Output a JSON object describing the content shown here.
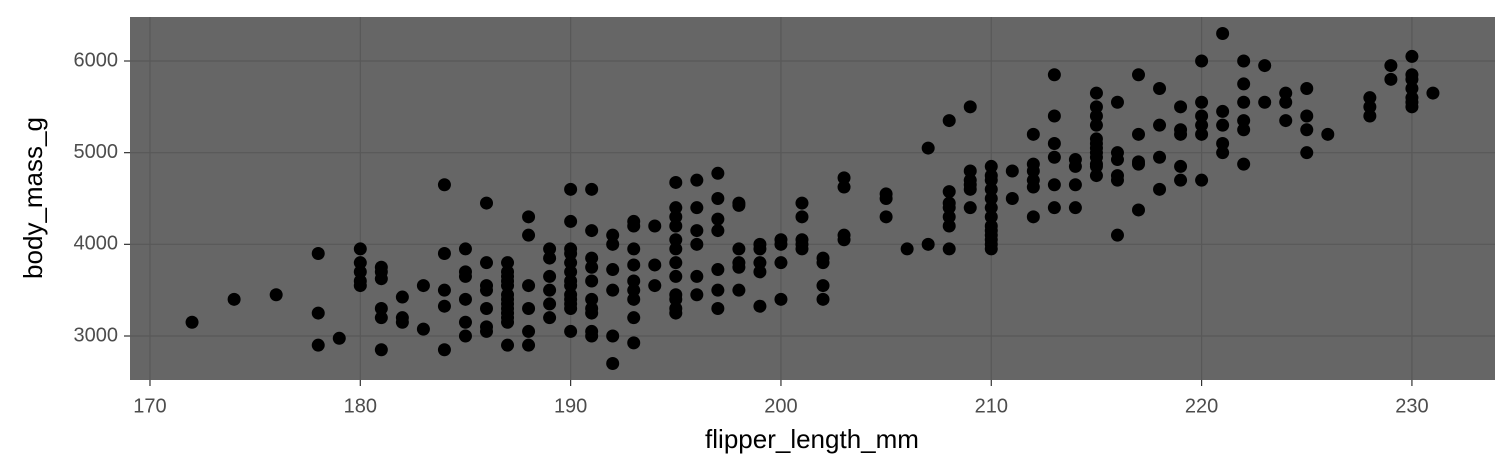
{
  "chart_data": {
    "type": "scatter",
    "x_label": "flipper_length_mm",
    "y_label": "body_mass_g",
    "x": [
      172,
      174,
      176,
      178,
      178,
      178,
      179,
      180,
      180,
      180,
      180,
      180,
      181,
      181,
      181,
      181,
      181,
      181,
      182,
      182,
      182,
      183,
      183,
      184,
      184,
      184,
      184,
      184,
      185,
      185,
      185,
      185,
      185,
      185,
      186,
      186,
      186,
      186,
      186,
      186,
      186,
      187,
      187,
      187,
      187,
      187,
      187,
      187,
      187,
      187,
      187,
      187,
      187,
      187,
      188,
      188,
      188,
      188,
      188,
      188,
      189,
      189,
      189,
      189,
      189,
      189,
      190,
      190,
      190,
      190,
      190,
      190,
      190,
      190,
      190,
      190,
      190,
      190,
      190,
      191,
      191,
      191,
      191,
      191,
      191,
      191,
      191,
      191,
      191,
      192,
      192,
      192,
      192,
      192,
      192,
      193,
      193,
      193,
      193,
      193,
      193,
      193,
      193,
      193,
      194,
      194,
      194,
      195,
      195,
      195,
      195,
      195,
      195,
      195,
      195,
      195,
      195,
      195,
      195,
      196,
      196,
      196,
      196,
      196,
      196,
      197,
      197,
      197,
      197,
      197,
      197,
      197,
      198,
      198,
      198,
      198,
      198,
      198,
      199,
      199,
      199,
      199,
      199,
      200,
      200,
      200,
      200,
      201,
      201,
      201,
      201,
      201,
      202,
      202,
      202,
      202,
      203,
      203,
      203,
      203,
      205,
      205,
      205,
      206,
      207,
      207,
      208,
      208,
      208,
      208,
      208,
      208,
      208,
      209,
      209,
      209,
      209,
      209,
      209,
      210,
      210,
      210,
      210,
      210,
      210,
      210,
      210,
      210,
      210,
      210,
      210,
      210,
      211,
      211,
      212,
      212,
      212,
      212,
      212,
      212,
      213,
      213,
      213,
      213,
      213,
      213,
      214,
      214,
      214,
      214,
      215,
      215,
      215,
      215,
      215,
      215,
      215,
      215,
      215,
      215,
      215,
      215,
      216,
      216,
      216,
      216,
      216,
      216,
      217,
      217,
      217,
      217,
      217,
      218,
      218,
      218,
      218,
      219,
      219,
      219,
      219,
      219,
      220,
      220,
      220,
      220,
      220,
      220,
      221,
      221,
      221,
      221,
      221,
      222,
      222,
      222,
      222,
      222,
      222,
      223,
      223,
      224,
      224,
      224,
      225,
      225,
      225,
      225,
      226,
      228,
      228,
      228,
      229,
      229,
      230,
      230,
      230,
      230,
      230,
      230,
      230,
      231
    ],
    "values": [
      3150,
      3400,
      3450,
      3900,
      3250,
      2900,
      2975,
      3950,
      3800,
      3700,
      3600,
      3550,
      3750,
      3700,
      3625,
      3300,
      3200,
      2850,
      3425,
      3200,
      3150,
      3550,
      3075,
      4650,
      3900,
      3500,
      3325,
      2850,
      3950,
      3700,
      3650,
      3400,
      3150,
      3000,
      4450,
      3800,
      3550,
      3500,
      3300,
      3100,
      3050,
      3800,
      3700,
      3650,
      3600,
      3550,
      3450,
      3400,
      3350,
      3300,
      3250,
      3200,
      3150,
      2900,
      4300,
      4100,
      3550,
      3300,
      3050,
      2900,
      3950,
      3850,
      3650,
      3500,
      3350,
      3200,
      4600,
      4250,
      3950,
      3900,
      3800,
      3700,
      3600,
      3550,
      3450,
      3400,
      3350,
      3300,
      3050,
      4600,
      4150,
      3850,
      3750,
      3600,
      3400,
      3300,
      3250,
      3050,
      3000,
      4100,
      4000,
      3725,
      3500,
      3000,
      2700,
      4250,
      4200,
      3950,
      3775,
      3600,
      3500,
      3400,
      3200,
      2925,
      4200,
      3775,
      3550,
      4675,
      4400,
      4300,
      4200,
      4050,
      3950,
      3800,
      3650,
      3450,
      3400,
      3300,
      3250,
      4700,
      4400,
      4150,
      4000,
      3650,
      3450,
      4775,
      4500,
      4275,
      4150,
      3725,
      3500,
      3300,
      4450,
      4425,
      3950,
      3800,
      3750,
      3500,
      4000,
      3950,
      3800,
      3700,
      3325,
      4050,
      4000,
      3800,
      3400,
      4450,
      4300,
      4050,
      4000,
      3950,
      3850,
      3800,
      3550,
      3400,
      4725,
      4625,
      4100,
      4050,
      4550,
      4500,
      4300,
      3950,
      5050,
      4000,
      5350,
      4575,
      4450,
      4400,
      4300,
      4200,
      3950,
      5500,
      4800,
      4700,
      4650,
      4600,
      4400,
      4850,
      4750,
      4700,
      4600,
      4500,
      4400,
      4300,
      4200,
      4150,
      4100,
      4050,
      4000,
      3950,
      4800,
      4500,
      5200,
      4875,
      4800,
      4700,
      4625,
      4300,
      5850,
      5400,
      5100,
      4950,
      4650,
      4400,
      4925,
      4850,
      4650,
      4400,
      5650,
      5500,
      5400,
      5300,
      5150,
      5100,
      5050,
      5000,
      4950,
      4875,
      4850,
      4750,
      5550,
      5000,
      4925,
      4750,
      4700,
      4100,
      5850,
      5200,
      4900,
      4875,
      4375,
      5700,
      5300,
      4950,
      4600,
      5500,
      5250,
      5200,
      4850,
      4700,
      6000,
      5550,
      5400,
      5300,
      5200,
      4700,
      6300,
      5450,
      5300,
      5100,
      5000,
      6000,
      5750,
      5550,
      5350,
      5250,
      4875,
      5950,
      5550,
      5650,
      5550,
      5350,
      5700,
      5400,
      5250,
      5000,
      5200,
      5600,
      5500,
      5400,
      5950,
      5800,
      6050,
      5850,
      5800,
      5700,
      5600,
      5550,
      5500,
      5650
    ],
    "color": "#000000",
    "xlim": [
      169.05,
      233.95
    ],
    "xticks": [
      170,
      180,
      190,
      200,
      210,
      220,
      230
    ],
    "ylim": [
      2520,
      6480
    ],
    "yticks": [
      3000,
      4000,
      5000,
      6000
    ],
    "grid": true,
    "panel_color": "#666666",
    "grid_color": "#585858"
  }
}
